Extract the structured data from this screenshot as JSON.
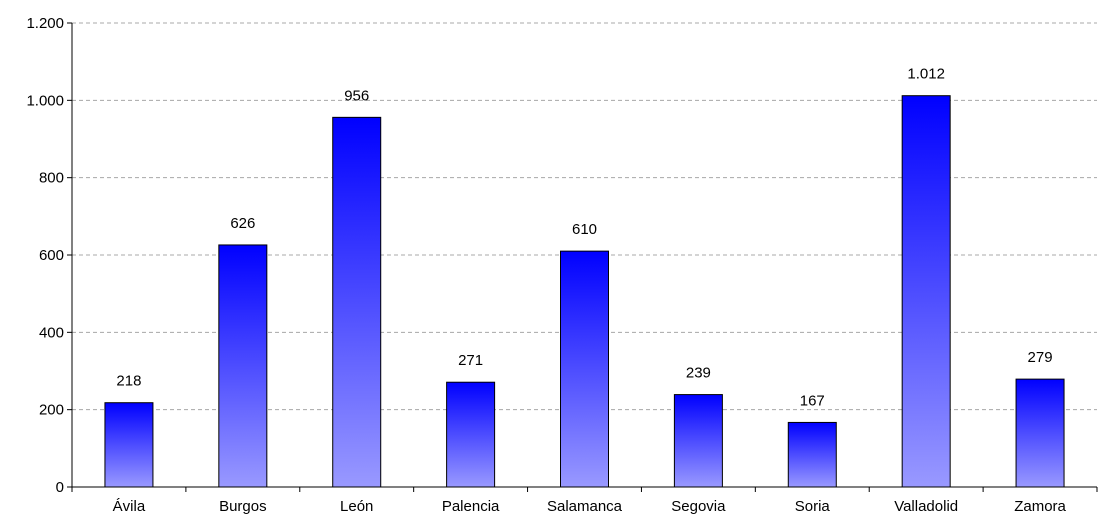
{
  "chart_data": {
    "type": "bar",
    "title": "",
    "xlabel": "",
    "ylabel": "",
    "categories": [
      "Ávila",
      "Burgos",
      "León",
      "Palencia",
      "Salamanca",
      "Segovia",
      "Soria",
      "Valladolid",
      "Zamora"
    ],
    "values": [
      218,
      626,
      956,
      271,
      610,
      239,
      167,
      1012,
      279
    ],
    "value_labels": [
      "218",
      "626",
      "956",
      "271",
      "610",
      "239",
      "167",
      "1.012",
      "279"
    ],
    "ylim": [
      0,
      1200
    ],
    "yticks": [
      0,
      200,
      400,
      600,
      800,
      1000,
      1200
    ],
    "ytick_labels": [
      "0",
      "200",
      "400",
      "600",
      "800",
      "1.000",
      "1.200"
    ],
    "grid": true,
    "legend": "none",
    "colors": {
      "bar_top": "#0000ff",
      "bar_bottom": "#9999ff",
      "grid": "#a8a8a8"
    }
  }
}
